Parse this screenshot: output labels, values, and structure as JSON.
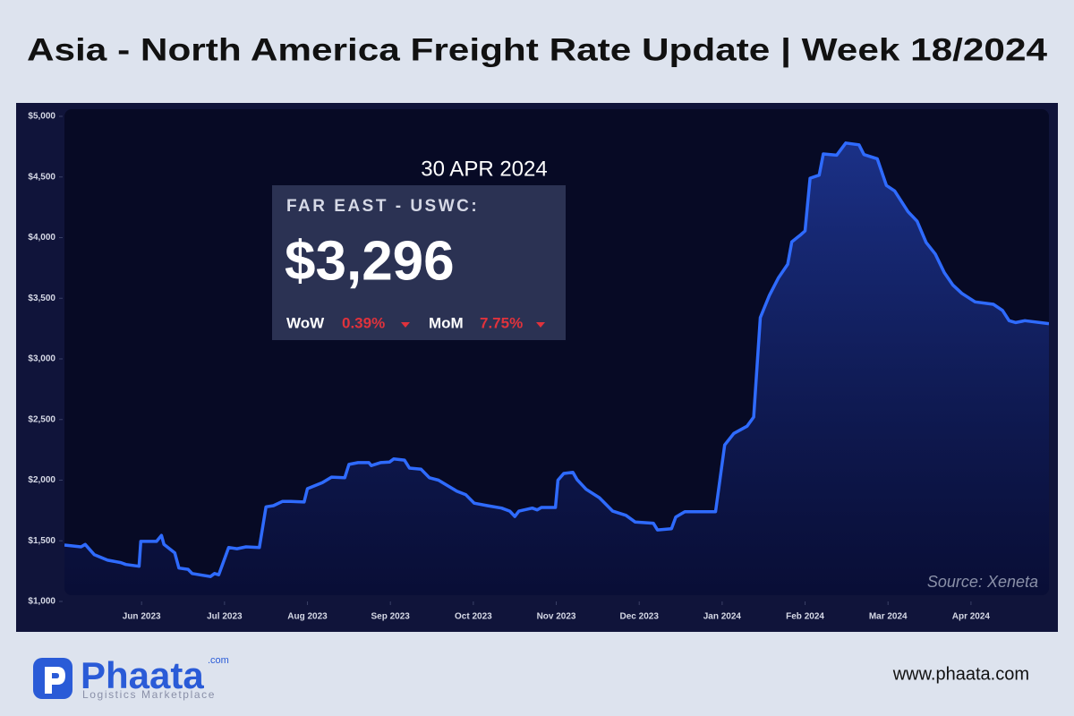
{
  "chart_data": {
    "type": "line",
    "title": "Asia - North America Freight Rate Update | Week 18/2024",
    "callout": {
      "date": "30 APR 2024",
      "label": "FAR EAST - USWC:",
      "value": "$3,296",
      "wow_label": "WoW",
      "wow": "0.39%",
      "mom_label": "MoM",
      "mom": "7.75%"
    },
    "source": "Source: Xeneta",
    "series": [
      {
        "name": "Far East - USWC",
        "color": "#2f6bff",
        "x": [
          4.07,
          4.27,
          4.32,
          4.43,
          4.59,
          4.75,
          4.81,
          4.97,
          4.99,
          5.18,
          5.24,
          5.27,
          5.4,
          5.45,
          5.56,
          5.61,
          5.83,
          5.88,
          5.93,
          6.05,
          6.15,
          6.26,
          6.42,
          6.5,
          6.59,
          6.7,
          6.8,
          6.96,
          7.0,
          7.18,
          7.29,
          7.45,
          7.5,
          7.61,
          7.74,
          7.77,
          7.88,
          7.99,
          8.04,
          8.17,
          8.23,
          8.37,
          8.47,
          8.58,
          8.69,
          8.8,
          8.91,
          9.01,
          9.17,
          9.34,
          9.44,
          9.5,
          9.55,
          9.71,
          9.77,
          9.82,
          9.99,
          10.02,
          10.09,
          10.2,
          10.25,
          10.36,
          10.52,
          10.68,
          10.84,
          10.95,
          11.17,
          11.22,
          11.39,
          11.44,
          11.55,
          11.71,
          11.92,
          12.03,
          12.14,
          12.3,
          12.38,
          12.46,
          12.57,
          12.68,
          12.79,
          12.84,
          12.95,
          13.0,
          13.06,
          13.17,
          13.22,
          13.38,
          13.49,
          13.65,
          13.71,
          13.87,
          13.98,
          14.08,
          14.24,
          14.35,
          14.46,
          14.57,
          14.68,
          14.78,
          14.89,
          15.05,
          15.27,
          15.38,
          15.46,
          15.54,
          15.65,
          15.94
        ],
        "values": [
          1465,
          1450,
          1470,
          1385,
          1340,
          1320,
          1305,
          1290,
          1495,
          1495,
          1545,
          1470,
          1400,
          1275,
          1265,
          1230,
          1205,
          1230,
          1220,
          1445,
          1435,
          1450,
          1445,
          1780,
          1790,
          1825,
          1825,
          1820,
          1930,
          1980,
          2025,
          2020,
          2130,
          2145,
          2145,
          2120,
          2145,
          2150,
          2175,
          2165,
          2100,
          2090,
          2020,
          2000,
          1955,
          1910,
          1880,
          1810,
          1790,
          1770,
          1745,
          1700,
          1745,
          1770,
          1755,
          1775,
          1775,
          2000,
          2055,
          2065,
          2005,
          1925,
          1855,
          1745,
          1710,
          1655,
          1645,
          1590,
          1600,
          1695,
          1740,
          1740,
          1740,
          2290,
          2385,
          2445,
          2520,
          3340,
          3525,
          3670,
          3780,
          3965,
          4025,
          4055,
          4490,
          4515,
          4690,
          4680,
          4780,
          4765,
          4685,
          4650,
          4430,
          4385,
          4215,
          4135,
          3960,
          3865,
          3710,
          3610,
          3540,
          3470,
          3450,
          3400,
          3315,
          3300,
          3315,
          3290
        ]
      }
    ],
    "xlim": [
      4.07,
      15.94
    ],
    "xticks": [
      {
        "value": 5,
        "label": "Jun 2023"
      },
      {
        "value": 6,
        "label": "Jul 2023"
      },
      {
        "value": 7,
        "label": "Aug 2023"
      },
      {
        "value": 8,
        "label": "Sep 2023"
      },
      {
        "value": 9,
        "label": "Oct 2023"
      },
      {
        "value": 10,
        "label": "Nov 2023"
      },
      {
        "value": 11,
        "label": "Dec 2023"
      },
      {
        "value": 12,
        "label": "Jan 2024"
      },
      {
        "value": 13,
        "label": "Feb 2024"
      },
      {
        "value": 14,
        "label": "Mar 2024"
      },
      {
        "value": 15,
        "label": "Apr 2024"
      }
    ],
    "ylim": [
      1000,
      5000
    ],
    "yticks": [
      {
        "value": 1000,
        "label": "$1,000"
      },
      {
        "value": 1500,
        "label": "$1,500"
      },
      {
        "value": 2000,
        "label": "$2,000"
      },
      {
        "value": 2500,
        "label": "$2,500"
      },
      {
        "value": 3000,
        "label": "$3,000"
      },
      {
        "value": 3500,
        "label": "$3,500"
      },
      {
        "value": 4000,
        "label": "$4,000"
      },
      {
        "value": 4500,
        "label": "$4,500"
      },
      {
        "value": 5000,
        "label": "$5,000"
      }
    ]
  },
  "footer": {
    "brand": "Phaata",
    "brand_suffix": ".com",
    "tagline": "Logistics Marketplace",
    "website": "www.phaata.com"
  }
}
